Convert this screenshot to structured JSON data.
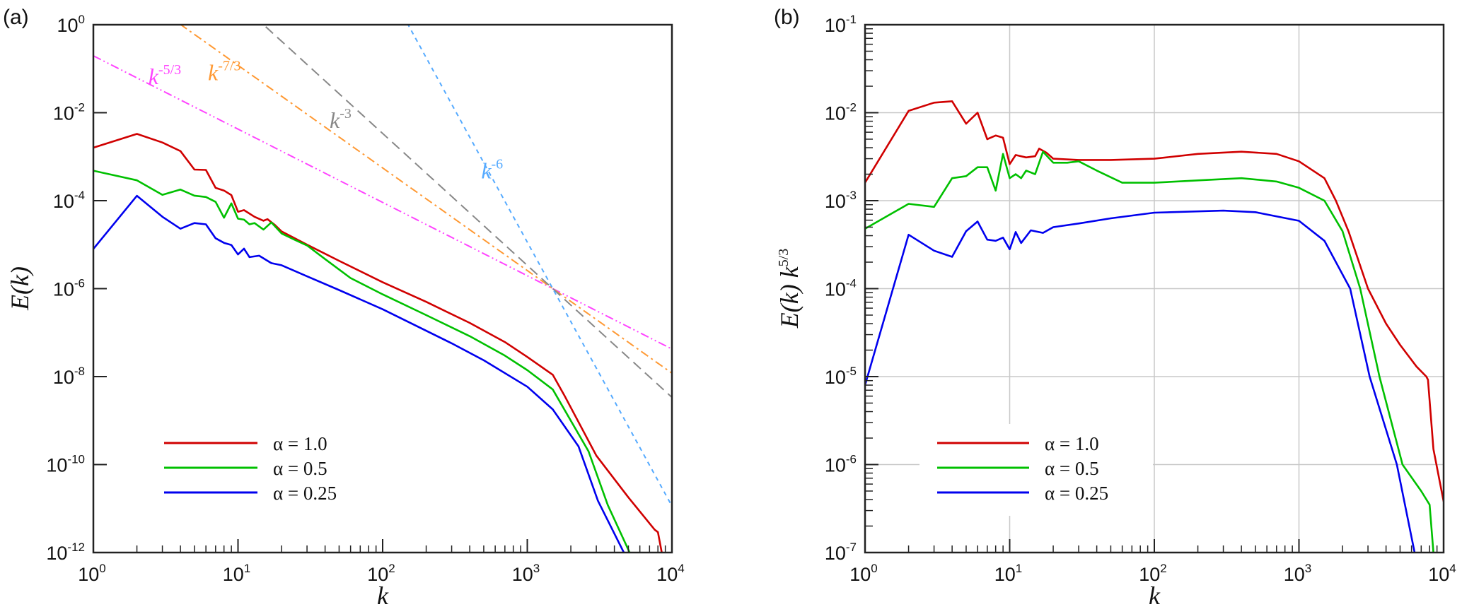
{
  "chart_data": [
    {
      "panel": "(a)",
      "type": "line",
      "xscale": "log",
      "yscale": "log",
      "xlabel": "k",
      "ylabel": "E(k)",
      "xlim": [
        1,
        10000
      ],
      "ylim": [
        1e-12,
        1
      ],
      "x_ticks": [
        {
          "base": "10",
          "exp": "0",
          "value": 1
        },
        {
          "base": "10",
          "exp": "1",
          "value": 10
        },
        {
          "base": "10",
          "exp": "2",
          "value": 100
        },
        {
          "base": "10",
          "exp": "3",
          "value": 1000
        },
        {
          "base": "10",
          "exp": "4",
          "value": 10000
        }
      ],
      "y_ticks": [
        {
          "base": "10",
          "exp": "0",
          "value": 1
        },
        {
          "base": "10",
          "exp": "-2",
          "value": 0.01
        },
        {
          "base": "10",
          "exp": "-4",
          "value": 0.0001
        },
        {
          "base": "10",
          "exp": "-6",
          "value": 1e-06
        },
        {
          "base": "10",
          "exp": "-8",
          "value": 1e-08
        },
        {
          "base": "10",
          "exp": "-10",
          "value": 1e-10
        },
        {
          "base": "10",
          "exp": "-12",
          "value": 1e-12
        }
      ],
      "grid": false,
      "legend_position": "bottom-left",
      "series": [
        {
          "name": "α = 1.0",
          "color": "#d00000",
          "x": [
            1,
            2,
            3,
            4,
            5,
            6,
            7,
            8,
            9,
            10,
            11,
            13,
            15,
            16,
            18,
            20,
            30,
            50,
            100,
            200,
            400,
            700,
            1000,
            1500,
            1800,
            3000,
            5000,
            7600,
            8000,
            8500
          ],
          "y": [
            0.0016,
            0.0033,
            0.0021,
            0.00134,
            0.00051,
            0.0005,
            0.000195,
            0.00017,
            0.000134,
            5.6e-05,
            6.1e-05,
            4.3e-05,
            3.5e-05,
            3.8e-05,
            2.8e-05,
            2e-05,
            1e-05,
            4.3e-06,
            1.4e-06,
            5e-07,
            1.66e-07,
            6.1e-08,
            2.8e-08,
            1.1e-08,
            3.8e-09,
            1.6e-10,
            1.8e-11,
            3.3e-12,
            2.9e-12,
            1e-12
          ]
        },
        {
          "name": "α = 0.5",
          "color": "#00c000",
          "x": [
            1,
            2,
            3,
            4,
            5,
            6,
            7,
            8,
            9,
            10,
            11,
            12,
            13,
            15,
            17,
            20,
            25,
            30,
            40,
            60,
            100,
            200,
            400,
            700,
            1000,
            1500,
            2650,
            3600,
            5100
          ],
          "y": [
            0.00048,
            0.00029,
            0.000136,
            0.000179,
            0.00013,
            0.000121,
            9.4e-05,
            4.1e-05,
            8.7e-05,
            3.9e-05,
            3.7e-05,
            2.9e-05,
            3.1e-05,
            2.2e-05,
            3.2e-05,
            1.8e-05,
            1.26e-05,
            9.6e-06,
            4.7e-06,
            1.74e-06,
            7.4e-07,
            2.5e-07,
            8.3e-08,
            3e-08,
            1.4e-08,
            5.1e-09,
            2e-10,
            1.2e-11,
            1e-12
          ]
        },
        {
          "name": "α = 0.25",
          "color": "#0000ee",
          "x": [
            1,
            2,
            3,
            4,
            5,
            6,
            7,
            8,
            9,
            10,
            11,
            12,
            14,
            17,
            20,
            30,
            50,
            100,
            300,
            500,
            1000,
            1500,
            2260,
            3080,
            4650
          ],
          "y": [
            8e-06,
            0.000129,
            4.3e-05,
            2.3e-05,
            3.1e-05,
            2.9e-05,
            1.4e-05,
            1.1e-05,
            9.8e-06,
            6e-06,
            8.1e-06,
            5.2e-06,
            5.6e-06,
            3.8e-06,
            3.4e-06,
            1.9e-06,
            9.3e-07,
            3.4e-07,
            5.7e-08,
            2.35e-08,
            5.9e-09,
            1.8e-09,
            2.6e-10,
            1.5e-11,
            1e-12
          ]
        }
      ],
      "reference_lines": [
        {
          "label_base": "k",
          "label_exp": "-5/3",
          "slope": -1.6667,
          "through": [
            1500,
            1e-06
          ],
          "color": "#ff44ff",
          "style": "dash-dot-dot",
          "label_at": [
            2.4,
            0.045
          ]
        },
        {
          "label_base": "k",
          "label_exp": "-7/3",
          "slope": -2.3333,
          "through": [
            1500,
            1e-06
          ],
          "color": "#ff9933",
          "style": "dash-dot",
          "label_at": [
            6.2,
            0.055
          ]
        },
        {
          "label_base": "k",
          "label_exp": "-3",
          "slope": -3,
          "through": [
            1500,
            1e-06
          ],
          "color": "#888888",
          "style": "dash",
          "label_at": [
            43,
            0.0045
          ]
        },
        {
          "label_base": "k",
          "label_exp": "-6",
          "slope": -6,
          "through": [
            1500,
            1e-06
          ],
          "color": "#55aaff",
          "style": "dot",
          "label_at": [
            480,
            0.00032
          ]
        }
      ]
    },
    {
      "panel": "(b)",
      "type": "line",
      "xscale": "log",
      "yscale": "log",
      "xlabel": "k",
      "ylabel": "E(k) k^5/3",
      "ylabel_base": "E(k) k",
      "ylabel_exp": "5/3",
      "xlim": [
        1,
        10000
      ],
      "ylim": [
        1e-07,
        0.1
      ],
      "x_ticks": [
        {
          "base": "10",
          "exp": "0",
          "value": 1
        },
        {
          "base": "10",
          "exp": "1",
          "value": 10
        },
        {
          "base": "10",
          "exp": "2",
          "value": 100
        },
        {
          "base": "10",
          "exp": "3",
          "value": 1000
        },
        {
          "base": "10",
          "exp": "4",
          "value": 10000
        }
      ],
      "y_ticks": [
        {
          "base": "10",
          "exp": "-1",
          "value": 0.1
        },
        {
          "base": "10",
          "exp": "-2",
          "value": 0.01
        },
        {
          "base": "10",
          "exp": "-3",
          "value": 0.001
        },
        {
          "base": "10",
          "exp": "-4",
          "value": 0.0001
        },
        {
          "base": "10",
          "exp": "-5",
          "value": 1e-05
        },
        {
          "base": "10",
          "exp": "-6",
          "value": 1e-06
        },
        {
          "base": "10",
          "exp": "-7",
          "value": 1e-07
        }
      ],
      "grid": true,
      "legend_position": "bottom-left",
      "series": [
        {
          "name": "α = 1.0",
          "color": "#d00000",
          "x": [
            1,
            2,
            3,
            4,
            5,
            6,
            7,
            8,
            9,
            10,
            11,
            13,
            15,
            16,
            18,
            20,
            30,
            50,
            100,
            200,
            400,
            700,
            1000,
            1500,
            1800,
            2200,
            3000,
            4000,
            5000,
            6500,
            7600,
            7800,
            8500,
            10000
          ],
          "y": [
            0.0016,
            0.0105,
            0.013,
            0.0135,
            0.0075,
            0.01,
            0.005,
            0.0055,
            0.0052,
            0.0026,
            0.0033,
            0.0031,
            0.0032,
            0.0039,
            0.0035,
            0.003,
            0.0029,
            0.0029,
            0.003,
            0.0034,
            0.0036,
            0.0034,
            0.0028,
            0.0018,
            0.001,
            0.00045,
            0.0001,
            4e-05,
            2.3e-05,
            1.3e-05,
            1e-05,
            9.2e-06,
            1.5e-06,
            3.8e-07
          ]
        },
        {
          "name": "α = 0.5",
          "color": "#00c000",
          "x": [
            1,
            2,
            3,
            4,
            5,
            6,
            7,
            8,
            9,
            10,
            11,
            12,
            13,
            15,
            17,
            20,
            25,
            30,
            40,
            60,
            100,
            200,
            400,
            700,
            1000,
            1500,
            2000,
            2650,
            3600,
            5200,
            7000,
            8000,
            8500
          ],
          "y": [
            0.00048,
            0.00092,
            0.00085,
            0.0018,
            0.0019,
            0.0024,
            0.0024,
            0.0013,
            0.0034,
            0.0018,
            0.002,
            0.0018,
            0.0022,
            0.002,
            0.0036,
            0.0027,
            0.0027,
            0.0028,
            0.0022,
            0.0016,
            0.0016,
            0.0017,
            0.0018,
            0.00165,
            0.0014,
            0.001,
            0.00045,
            0.0001,
            1e-05,
            1e-06,
            5e-07,
            3.5e-07,
            1e-07
          ]
        },
        {
          "name": "α = 0.25",
          "color": "#0000ee",
          "x": [
            1,
            2,
            3,
            4,
            5,
            6,
            7,
            8,
            9,
            10,
            11,
            12,
            14,
            17,
            20,
            30,
            50,
            100,
            300,
            500,
            1000,
            1500,
            2260,
            3080,
            4750,
            6300
          ],
          "y": [
            8e-06,
            0.00041,
            0.00027,
            0.00023,
            0.00045,
            0.00058,
            0.00036,
            0.00035,
            0.00038,
            0.00028,
            0.00044,
            0.00033,
            0.00046,
            0.00043,
            0.0005,
            0.00055,
            0.00063,
            0.00073,
            0.00077,
            0.00074,
            0.00059,
            0.00035,
            0.0001,
            1e-05,
            1e-06,
            1e-07
          ]
        }
      ]
    }
  ]
}
